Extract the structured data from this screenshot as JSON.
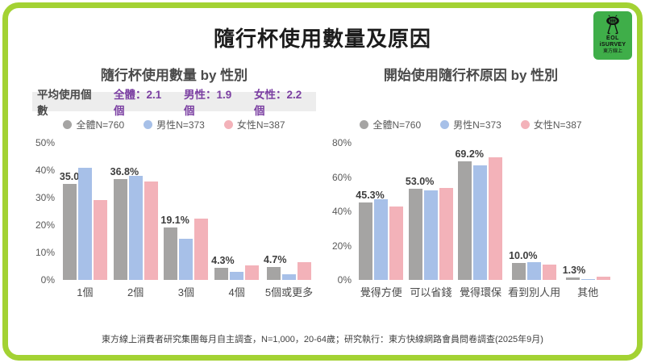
{
  "page": {
    "title": "隨行杯使用數量及原因",
    "footer": "東方線上消費者研究集團每月自主調查，N=1,000，20-64歲；研究執行：東方快線網路會員問卷調查(2025年9月)",
    "border_color": "#a3d233"
  },
  "logo": {
    "line1": "EOL",
    "line2": "iSURVEY",
    "line3": "東方線上",
    "bg_color": "#3fae49"
  },
  "left_panel": {
    "title": "隨行杯使用數量 by 性別",
    "avg_label": "平均使用個數",
    "avg_stats": [
      "全體：2.1個",
      "男性：1.9個",
      "女性：2.2個"
    ],
    "accent_color": "#7b3fa2"
  },
  "right_panel": {
    "title": "開始使用隨行杯原因 by 性別"
  },
  "colors": {
    "overall": "#a5a4a3",
    "male": "#a7c0e8",
    "female": "#f3b2b9"
  },
  "chart_data": [
    {
      "type": "bar",
      "title": "隨行杯使用數量 by 性別",
      "categories": [
        "1個",
        "2個",
        "3個",
        "4個",
        "5個或更多"
      ],
      "series": [
        {
          "name": "全體N=760",
          "key": "overall",
          "color": "#a5a4a3",
          "values": [
            35.0,
            36.8,
            19.1,
            4.3,
            4.7
          ]
        },
        {
          "name": "男性N=373",
          "key": "male",
          "color": "#a7c0e8",
          "values": [
            41.0,
            38.0,
            15.0,
            3.0,
            2.2
          ]
        },
        {
          "name": "女性N=387",
          "key": "female",
          "color": "#f3b2b9",
          "values": [
            29.0,
            36.0,
            22.3,
            5.4,
            6.4
          ]
        }
      ],
      "value_labels": [
        "35.0%",
        "36.8%",
        "19.1%",
        "4.3%",
        "4.7%"
      ],
      "ylabel": "",
      "xlabel": "",
      "ylim": [
        0,
        50
      ],
      "yticks": [
        0,
        10,
        20,
        30,
        40,
        50
      ],
      "grid": false,
      "legend_position": "top"
    },
    {
      "type": "bar",
      "title": "開始使用隨行杯原因 by 性別",
      "categories": [
        "覺得方便",
        "可以省錢",
        "覺得環保",
        "看到別人用",
        "其他"
      ],
      "series": [
        {
          "name": "全體N=760",
          "key": "overall",
          "color": "#a5a4a3",
          "values": [
            45.3,
            53.0,
            69.2,
            10.0,
            1.3
          ]
        },
        {
          "name": "男性N=373",
          "key": "male",
          "color": "#a7c0e8",
          "values": [
            47.0,
            52.3,
            67.0,
            10.5,
            0.6
          ]
        },
        {
          "name": "女性N=387",
          "key": "female",
          "color": "#f3b2b9",
          "values": [
            43.0,
            53.5,
            71.5,
            9.0,
            2.0
          ]
        }
      ],
      "value_labels": [
        "45.3%",
        "53.0%",
        "69.2%",
        "10.0%",
        "1.3%"
      ],
      "ylabel": "",
      "xlabel": "",
      "ylim": [
        0,
        80
      ],
      "yticks": [
        0,
        20,
        40,
        60,
        80
      ],
      "grid": false,
      "legend_position": "top"
    }
  ]
}
